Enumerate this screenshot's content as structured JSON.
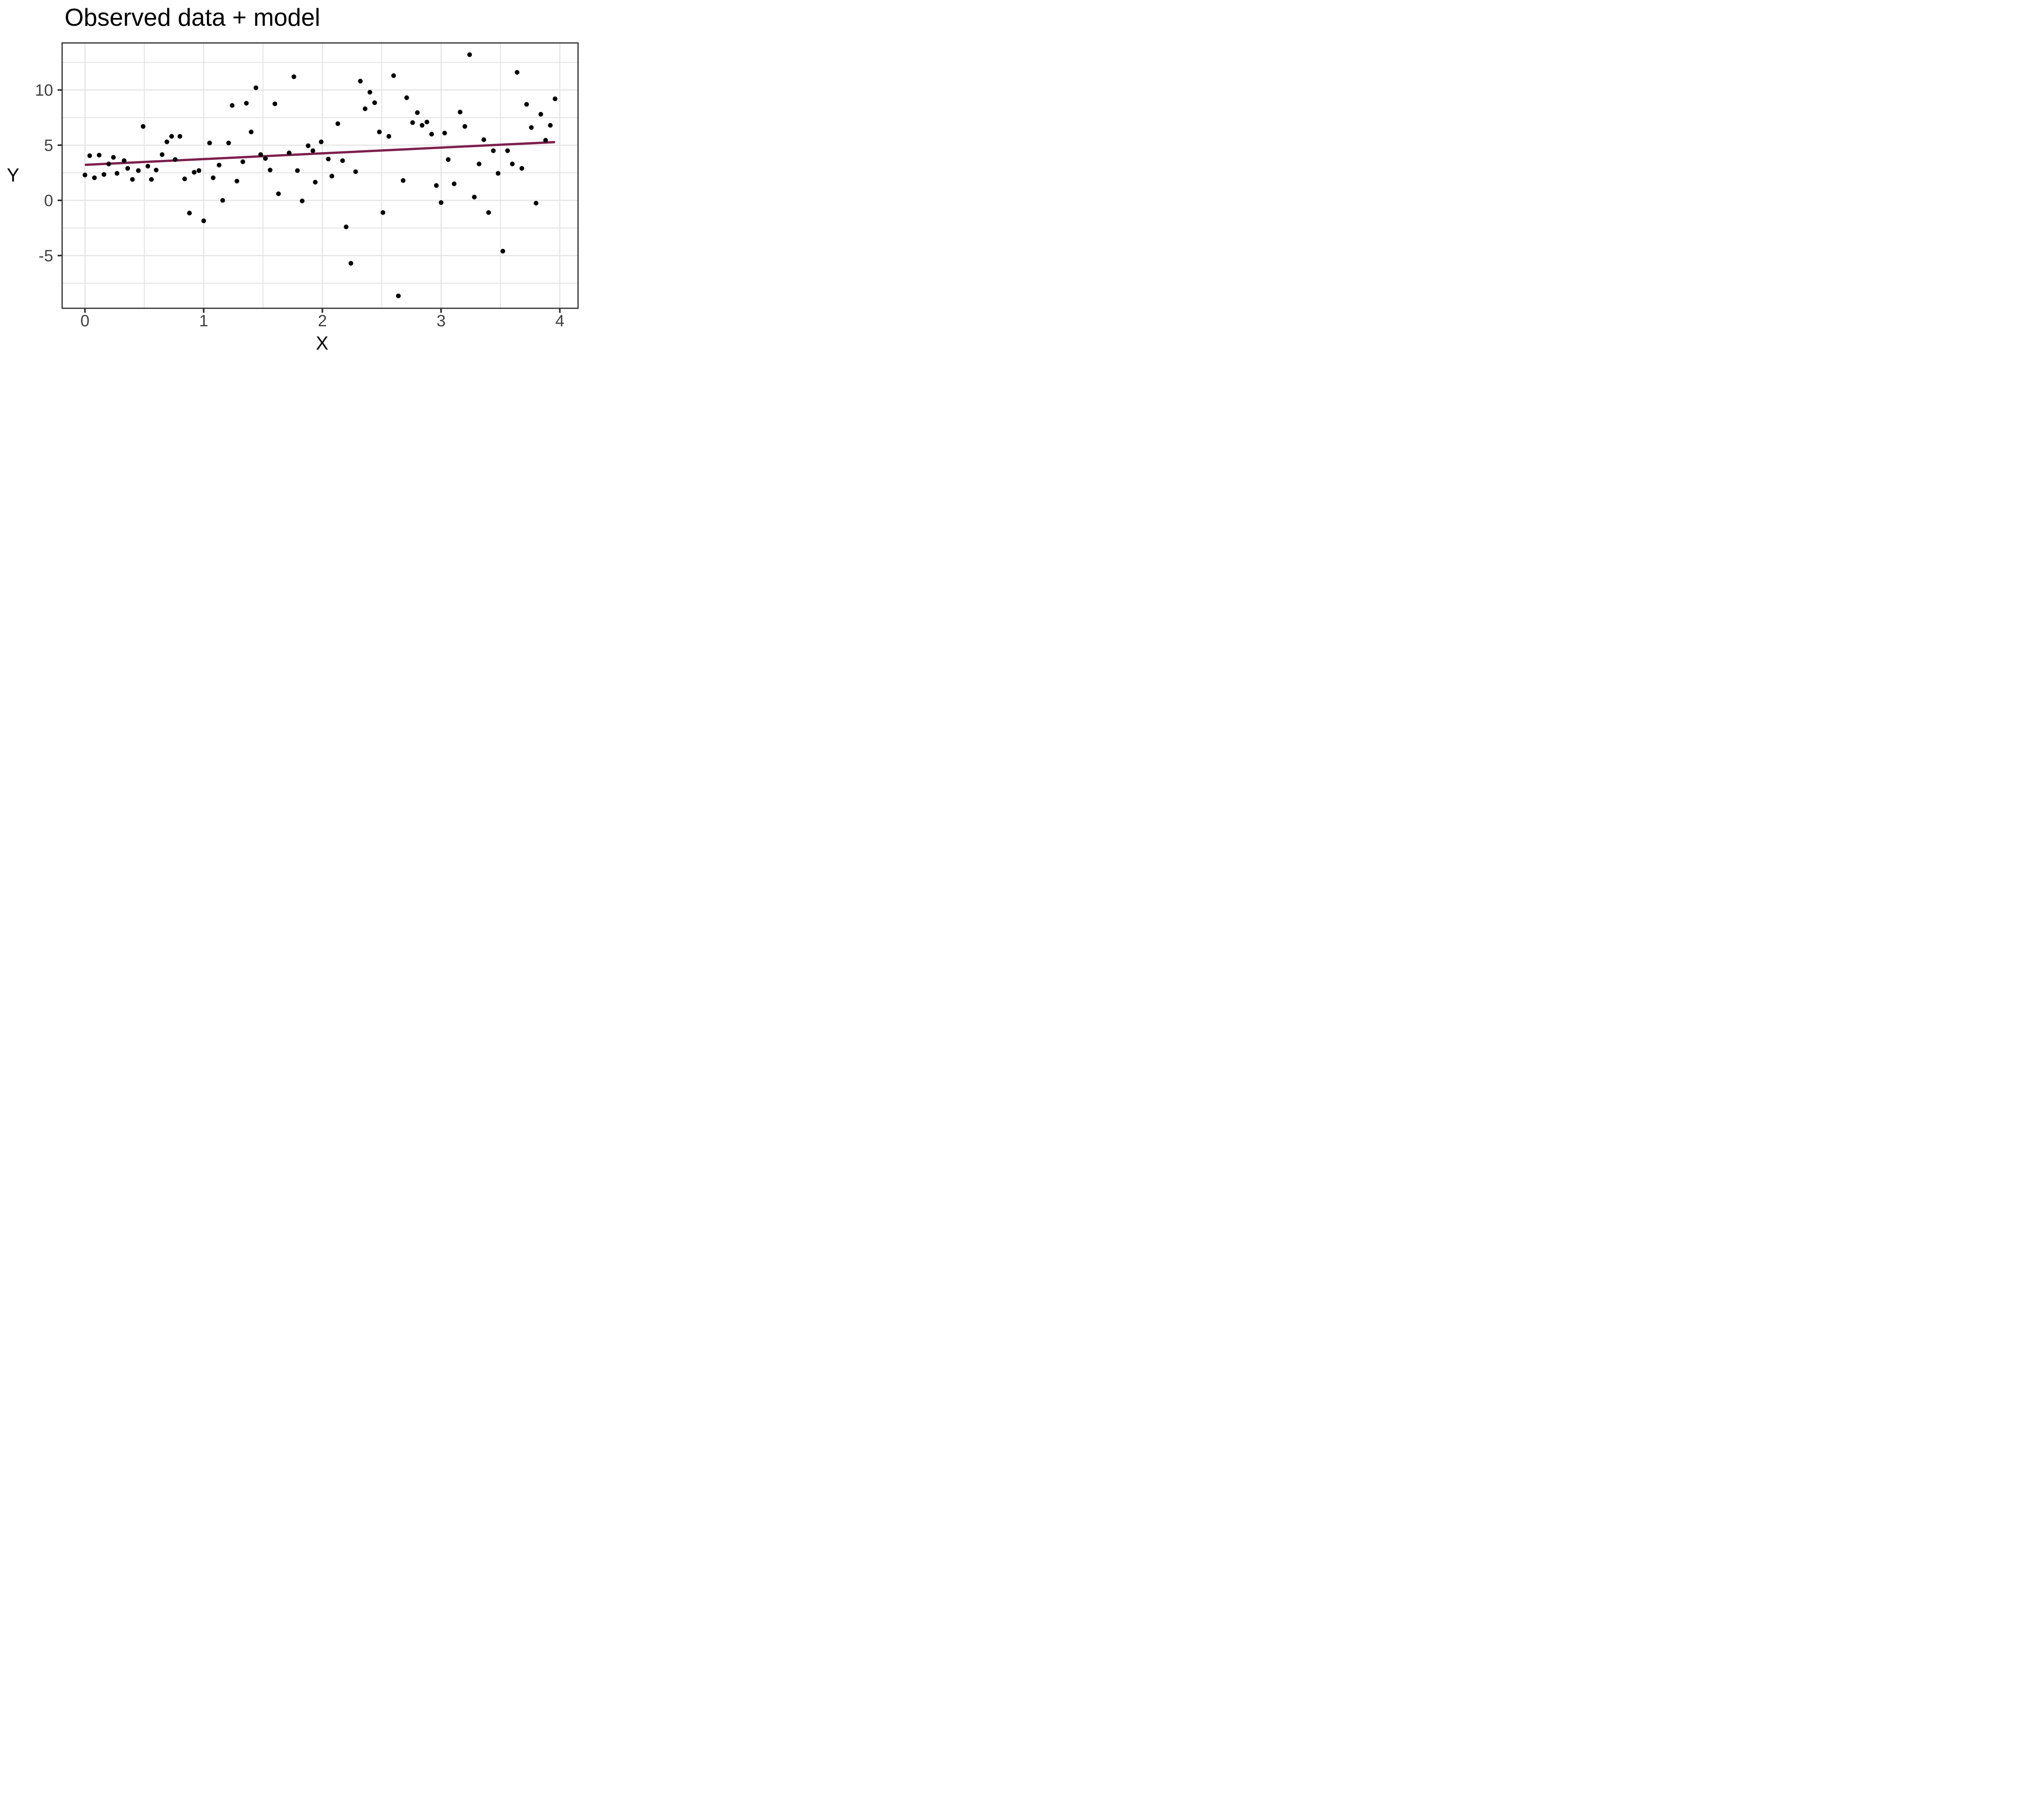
{
  "chart_data": {
    "type": "scatter",
    "title": "Observed data + model",
    "xlabel": "X",
    "ylabel": "Y",
    "xlim": [
      -0.19,
      4.17
    ],
    "ylim": [
      -9.77,
      14.26
    ],
    "grid": true,
    "legend": false,
    "x_ticks": {
      "major": [
        0,
        1,
        2,
        3,
        4
      ],
      "minor": [
        0.5,
        1.5,
        2.5,
        3.5
      ],
      "labels": [
        "0",
        "1",
        "2",
        "3",
        "4"
      ]
    },
    "y_ticks": {
      "major": [
        10,
        5,
        0,
        -5
      ],
      "minor": [
        12.5,
        7.5,
        2.5,
        -2.5,
        -7.5
      ],
      "labels": [
        "10",
        "5",
        "0",
        "-5"
      ]
    },
    "series": [
      {
        "name": "observed",
        "type": "scatter",
        "points": [
          [
            0.0,
            2.3
          ],
          [
            0.04,
            4.05
          ],
          [
            0.08,
            2.05
          ],
          [
            0.12,
            4.1
          ],
          [
            0.16,
            2.35
          ],
          [
            0.2,
            3.3
          ],
          [
            0.24,
            3.9
          ],
          [
            0.27,
            2.45
          ],
          [
            0.33,
            3.6
          ],
          [
            0.36,
            2.9
          ],
          [
            0.4,
            1.9
          ],
          [
            0.45,
            2.7
          ],
          [
            0.49,
            6.7
          ],
          [
            0.53,
            3.1
          ],
          [
            0.56,
            1.9
          ],
          [
            0.6,
            2.75
          ],
          [
            0.65,
            4.15
          ],
          [
            0.69,
            5.3
          ],
          [
            0.73,
            5.8
          ],
          [
            0.76,
            3.7
          ],
          [
            0.8,
            5.8
          ],
          [
            0.84,
            1.95
          ],
          [
            0.88,
            -1.15
          ],
          [
            0.92,
            2.55
          ],
          [
            0.96,
            2.7
          ],
          [
            1.0,
            -1.85
          ],
          [
            1.05,
            5.2
          ],
          [
            1.08,
            2.05
          ],
          [
            1.13,
            3.2
          ],
          [
            1.16,
            0.0
          ],
          [
            1.21,
            5.2
          ],
          [
            1.24,
            8.6
          ],
          [
            1.28,
            1.75
          ],
          [
            1.33,
            3.5
          ],
          [
            1.36,
            8.8
          ],
          [
            1.4,
            6.2
          ],
          [
            1.44,
            10.2
          ],
          [
            1.48,
            4.15
          ],
          [
            1.52,
            3.8
          ],
          [
            1.56,
            2.75
          ],
          [
            1.6,
            8.75
          ],
          [
            1.63,
            0.6
          ],
          [
            1.72,
            4.3
          ],
          [
            1.76,
            11.2
          ],
          [
            1.79,
            2.7
          ],
          [
            1.83,
            -0.05
          ],
          [
            1.88,
            4.95
          ],
          [
            1.92,
            4.5
          ],
          [
            1.94,
            1.65
          ],
          [
            1.99,
            5.3
          ],
          [
            2.05,
            3.75
          ],
          [
            2.08,
            2.2
          ],
          [
            2.13,
            6.95
          ],
          [
            2.17,
            3.6
          ],
          [
            2.2,
            -2.4
          ],
          [
            2.24,
            -5.7
          ],
          [
            2.28,
            2.6
          ],
          [
            2.32,
            10.8
          ],
          [
            2.36,
            8.3
          ],
          [
            2.4,
            9.8
          ],
          [
            2.44,
            8.85
          ],
          [
            2.48,
            6.2
          ],
          [
            2.51,
            -1.1
          ],
          [
            2.56,
            5.8
          ],
          [
            2.6,
            11.3
          ],
          [
            2.64,
            -8.65
          ],
          [
            2.68,
            1.8
          ],
          [
            2.71,
            9.3
          ],
          [
            2.76,
            7.05
          ],
          [
            2.8,
            7.95
          ],
          [
            2.84,
            6.8
          ],
          [
            2.88,
            7.1
          ],
          [
            2.92,
            6.0
          ],
          [
            2.96,
            1.35
          ],
          [
            3.0,
            -0.2
          ],
          [
            3.03,
            6.1
          ],
          [
            3.06,
            3.7
          ],
          [
            3.11,
            1.5
          ],
          [
            3.16,
            8.0
          ],
          [
            3.2,
            6.7
          ],
          [
            3.24,
            13.2
          ],
          [
            3.28,
            0.3
          ],
          [
            3.32,
            3.3
          ],
          [
            3.36,
            5.5
          ],
          [
            3.4,
            -1.1
          ],
          [
            3.44,
            4.5
          ],
          [
            3.48,
            2.45
          ],
          [
            3.52,
            -4.6
          ],
          [
            3.56,
            4.5
          ],
          [
            3.6,
            3.3
          ],
          [
            3.64,
            11.6
          ],
          [
            3.68,
            2.9
          ],
          [
            3.72,
            8.7
          ],
          [
            3.76,
            6.6
          ],
          [
            3.8,
            -0.25
          ],
          [
            3.84,
            7.8
          ],
          [
            3.88,
            5.45
          ],
          [
            3.92,
            6.8
          ],
          [
            3.96,
            9.2
          ]
        ]
      },
      {
        "name": "model",
        "type": "line",
        "endpoints": [
          [
            0.0,
            3.22
          ],
          [
            3.96,
            5.28
          ]
        ]
      }
    ],
    "colors": {
      "point": "#000000",
      "model_line": "#7D1F4E",
      "grid": "#E3E3E3",
      "panel_border": "#333333",
      "tick": "#333333",
      "tick_label": "#3F3F3F",
      "title": "#000000",
      "axis_label": "#000000",
      "background": "#FFFFFF"
    }
  }
}
